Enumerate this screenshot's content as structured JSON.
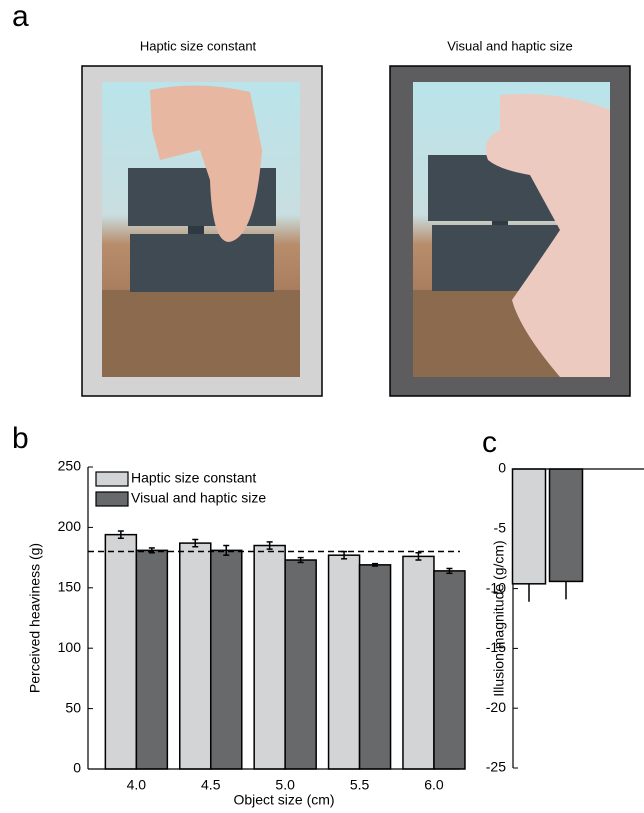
{
  "panel_labels": [
    "a",
    "b",
    "c"
  ],
  "photo_titles": [
    "Haptic size constant",
    "Visual and haptic size"
  ],
  "chart_data": [
    {
      "type": "bar",
      "categories": [
        "4.0",
        "4.5",
        "5.0",
        "5.5",
        "6.0"
      ],
      "series": [
        {
          "name": "Haptic size constant",
          "color": "#d3d4d6",
          "values": [
            194,
            187,
            185,
            177,
            176
          ],
          "errors": [
            3,
            3,
            3,
            3,
            3
          ]
        },
        {
          "name": "Visual and haptic size",
          "color": "#68696b",
          "values": [
            181,
            181,
            173,
            169,
            164
          ],
          "errors": [
            2,
            4,
            2,
            1,
            2
          ]
        }
      ],
      "reference_line": 180,
      "ylim": [
        0,
        250
      ],
      "yticks": [
        0,
        50,
        100,
        150,
        200,
        250
      ],
      "ylabel": "Perceived heaviness (g)",
      "xlabel": "Object size (cm)",
      "legend": "upper left",
      "grid": false
    },
    {
      "type": "bar",
      "categories": [
        null,
        null
      ],
      "values": [
        -9.6,
        -9.4
      ],
      "errors": [
        1.5,
        1.5
      ],
      "colors": [
        "#d3d4d6",
        "#68696b"
      ],
      "error_direction": "away",
      "ylim": [
        -25,
        0
      ],
      "yticks": [
        -25,
        -20,
        -15,
        -10,
        -5,
        0
      ],
      "ylabel": "Illusion magnitude (g/cm)",
      "grid": false
    }
  ]
}
